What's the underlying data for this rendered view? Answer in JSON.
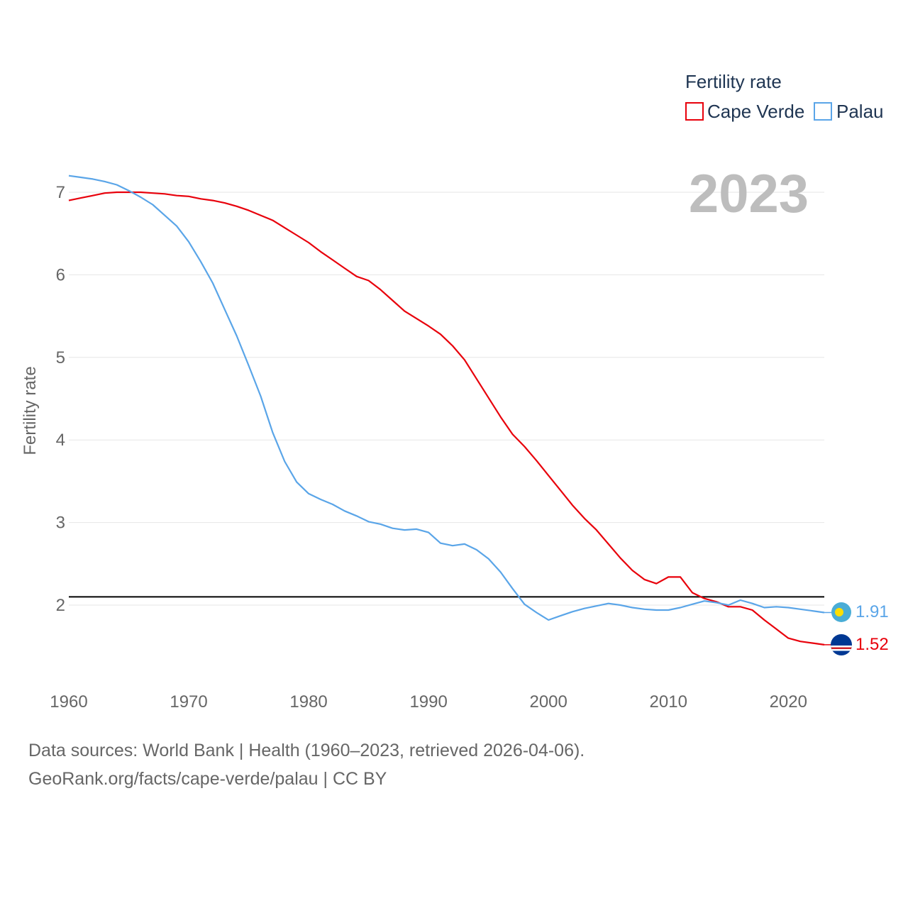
{
  "chart_data": {
    "type": "line",
    "title": "",
    "xlabel": "",
    "ylabel": "Fertility rate",
    "xlim": [
      1960,
      2023
    ],
    "ylim": [
      1.2,
      7.6
    ],
    "x_ticks": [
      1960,
      1970,
      1980,
      1990,
      2000,
      2010,
      2020
    ],
    "y_ticks": [
      2,
      3,
      4,
      5,
      6,
      7
    ],
    "grid": true,
    "legend_title": "Fertility rate",
    "legend_position": "top-right",
    "current_year": "2023",
    "reference_line": {
      "y": 2.1,
      "color": "#000000"
    },
    "x": [
      1960,
      1961,
      1962,
      1963,
      1964,
      1965,
      1966,
      1967,
      1968,
      1969,
      1970,
      1971,
      1972,
      1973,
      1974,
      1975,
      1976,
      1977,
      1978,
      1979,
      1980,
      1981,
      1982,
      1983,
      1984,
      1985,
      1986,
      1987,
      1988,
      1989,
      1990,
      1991,
      1992,
      1993,
      1994,
      1995,
      1996,
      1997,
      1998,
      1999,
      2000,
      2001,
      2002,
      2003,
      2004,
      2005,
      2006,
      2007,
      2008,
      2009,
      2010,
      2011,
      2012,
      2013,
      2014,
      2015,
      2016,
      2017,
      2018,
      2019,
      2020,
      2021,
      2022,
      2023
    ],
    "series": [
      {
        "name": "Cape Verde",
        "color": "#e8000b",
        "end_label": "1.52",
        "values": [
          6.9,
          6.93,
          6.96,
          6.99,
          7.0,
          7.0,
          7.0,
          6.99,
          6.98,
          6.96,
          6.95,
          6.92,
          6.9,
          6.87,
          6.83,
          6.78,
          6.72,
          6.66,
          6.57,
          6.48,
          6.39,
          6.28,
          6.18,
          6.08,
          5.98,
          5.93,
          5.82,
          5.69,
          5.56,
          5.47,
          5.38,
          5.28,
          5.14,
          4.97,
          4.74,
          4.51,
          4.28,
          4.07,
          3.92,
          3.75,
          3.57,
          3.39,
          3.21,
          3.05,
          2.91,
          2.74,
          2.57,
          2.42,
          2.31,
          2.26,
          2.34,
          2.34,
          2.15,
          2.08,
          2.04,
          1.98,
          1.98,
          1.94,
          1.82,
          1.71,
          1.6,
          1.56,
          1.54,
          1.52
        ]
      },
      {
        "name": "Palau",
        "color": "#5aa5e8",
        "end_label": "1.91",
        "values": [
          7.2,
          7.18,
          7.16,
          7.13,
          7.09,
          7.02,
          6.94,
          6.85,
          6.72,
          6.59,
          6.4,
          6.16,
          5.9,
          5.58,
          5.26,
          4.9,
          4.53,
          4.09,
          3.74,
          3.49,
          3.35,
          3.28,
          3.22,
          3.14,
          3.08,
          3.01,
          2.98,
          2.93,
          2.91,
          2.92,
          2.88,
          2.75,
          2.72,
          2.74,
          2.67,
          2.56,
          2.4,
          2.2,
          2.01,
          1.91,
          1.82,
          1.87,
          1.92,
          1.96,
          1.99,
          2.02,
          2.0,
          1.97,
          1.95,
          1.94,
          1.94,
          1.97,
          2.01,
          2.05,
          2.03,
          2.0,
          2.06,
          2.02,
          1.97,
          1.98,
          1.97,
          1.95,
          1.93,
          1.91
        ]
      }
    ]
  },
  "footer": {
    "sources_line": "Data sources: World Bank | Health (1960–2023, retrieved 2026-04-06).",
    "url_line": "GeoRank.org/facts/cape-verde/palau | CC BY"
  }
}
